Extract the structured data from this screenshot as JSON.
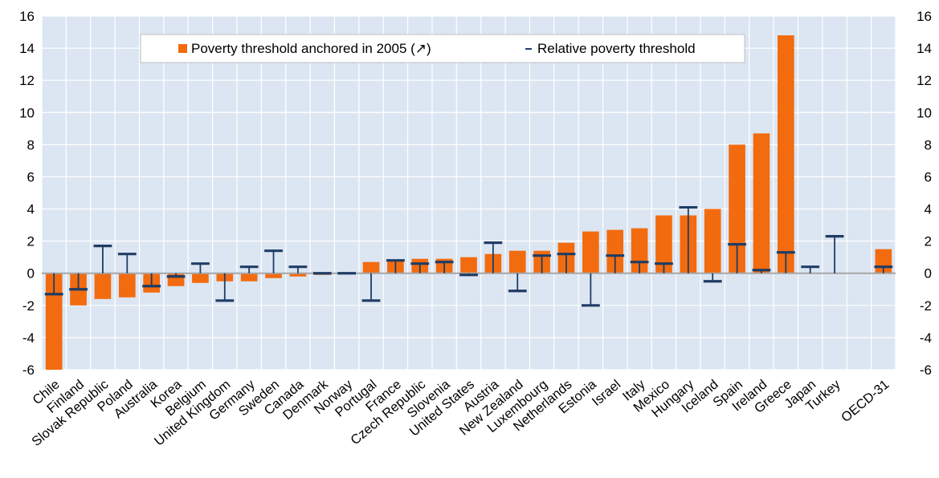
{
  "chart_data": {
    "type": "bar",
    "categories": [
      "Chile",
      "Finland",
      "Slovak Republic",
      "Poland",
      "Australia",
      "Korea",
      "Belgium",
      "United Kingdom",
      "Germany",
      "Sweden",
      "Canada",
      "Denmark",
      "Norway",
      "Portugal",
      "France",
      "Czech Republic",
      "Slovenia",
      "United States",
      "Austria",
      "New Zealand",
      "Luxembourg",
      "Netherlands",
      "Estonia",
      "Israel",
      "Italy",
      "Mexico",
      "Hungary",
      "Iceland",
      "Spain",
      "Ireland",
      "Greece",
      "Japan",
      "Turkey",
      "",
      "OECD-31"
    ],
    "series": [
      {
        "name": "Poverty threshold anchored in 2005 (↗)",
        "kind": "bar",
        "color": "#f26b0f",
        "values": [
          -6.3,
          -2.0,
          -1.6,
          -1.5,
          -1.2,
          -0.8,
          -0.6,
          -0.5,
          -0.5,
          -0.3,
          -0.2,
          -0.1,
          0.0,
          0.7,
          0.8,
          0.9,
          0.9,
          1.0,
          1.2,
          1.4,
          1.4,
          1.9,
          2.6,
          2.7,
          2.8,
          3.6,
          3.6,
          4.0,
          8.0,
          8.7,
          14.8,
          null,
          null,
          null,
          1.5
        ]
      },
      {
        "name": "Relative poverty threshold",
        "kind": "marker",
        "color": "#1f3c64",
        "values": [
          -1.3,
          -1.0,
          1.7,
          1.2,
          -0.8,
          -0.2,
          0.6,
          -1.7,
          0.4,
          1.4,
          0.4,
          0.0,
          0.0,
          -1.7,
          0.8,
          0.6,
          0.7,
          -0.1,
          1.9,
          -1.1,
          1.1,
          1.2,
          -2.0,
          1.1,
          0.7,
          0.6,
          4.1,
          -0.5,
          1.8,
          0.2,
          1.3,
          0.4,
          2.3,
          null,
          0.4
        ]
      }
    ],
    "ylim": [
      -6,
      16
    ],
    "yticks": [
      -6,
      -4,
      -2,
      0,
      2,
      4,
      6,
      8,
      10,
      12,
      14,
      16
    ],
    "grid": true,
    "legend_position": "top-center",
    "right_axis_mirrored": true
  }
}
